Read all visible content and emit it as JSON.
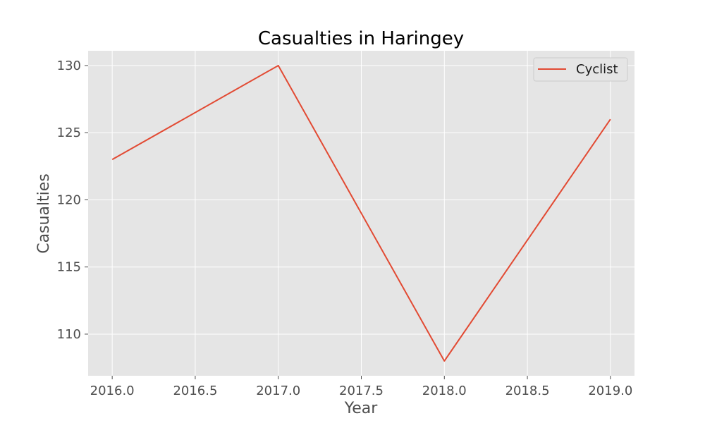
{
  "chart_data": {
    "type": "line",
    "title": "Casualties in Haringey",
    "xlabel": "Year",
    "ylabel": "Casualties",
    "xlim": [
      2015.855,
      2019.145
    ],
    "ylim": [
      106.9,
      131.1
    ],
    "xticks": [
      "2016.0",
      "2016.5",
      "2017.0",
      "2017.5",
      "2018.0",
      "2018.5",
      "2019.0"
    ],
    "yticks": [
      "110",
      "115",
      "120",
      "125",
      "130"
    ],
    "grid": true,
    "legend_position": "top-right",
    "series": [
      {
        "name": "Cyclist",
        "color": "#e24a33",
        "x": [
          2016,
          2017,
          2018,
          2019
        ],
        "y": [
          123,
          130,
          108,
          126
        ]
      }
    ]
  },
  "style": {
    "plot_background": "#e5e5e5",
    "grid_color": "#ffffff",
    "tick_color": "#4d4d4d"
  }
}
